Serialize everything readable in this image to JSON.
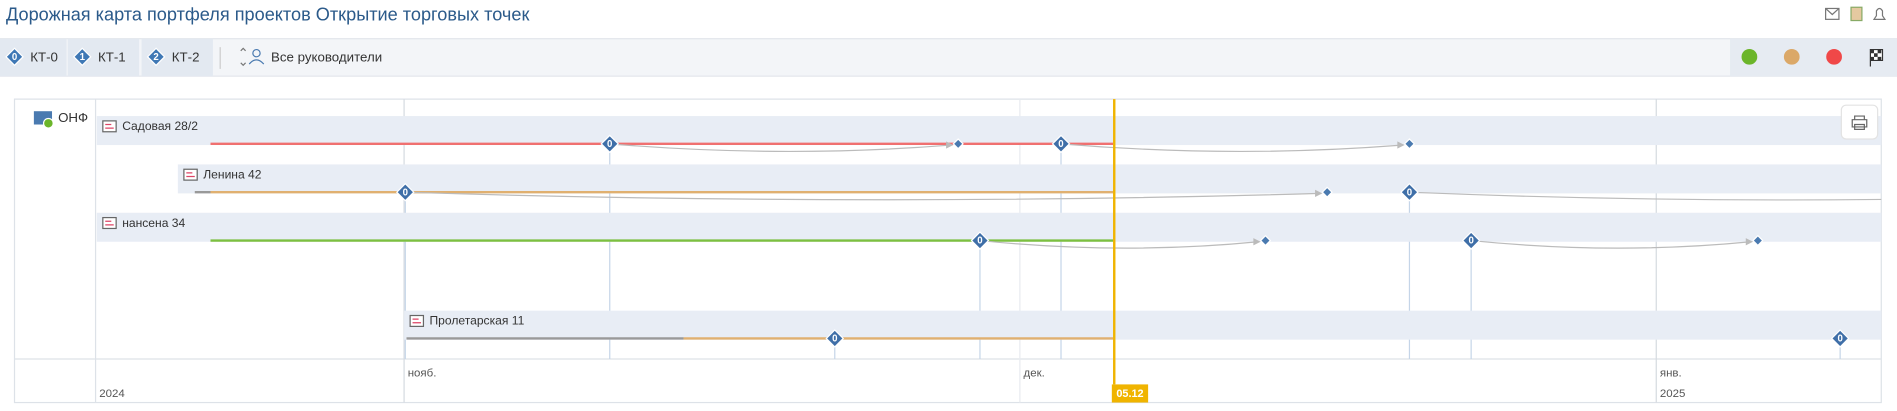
{
  "header": {
    "title": "Дорожная карта портфеля проектов Открытие торговых точек"
  },
  "toolbar": {
    "checkpoints": [
      {
        "badge": "0",
        "label": "КТ-0"
      },
      {
        "badge": "1",
        "label": "КТ-1"
      },
      {
        "badge": "2",
        "label": "КТ-2"
      }
    ],
    "manager_filter": "Все руководители"
  },
  "group": {
    "label": "ОНФ"
  },
  "rows": [
    {
      "name": "Садовая 28/2",
      "milestones": [
        "0",
        "0"
      ]
    },
    {
      "name": "Ленина 42",
      "milestones": [
        "0",
        "0"
      ]
    },
    {
      "name": "нансена 34",
      "milestones": [
        "0",
        "0"
      ]
    },
    {
      "name": "Пролетарская 11",
      "milestones": [
        "0",
        "0"
      ]
    }
  ],
  "timeline": {
    "months": [
      "нояб.",
      "дек.",
      "янв."
    ],
    "years": [
      "2024",
      "2025"
    ],
    "today": "05.12"
  }
}
